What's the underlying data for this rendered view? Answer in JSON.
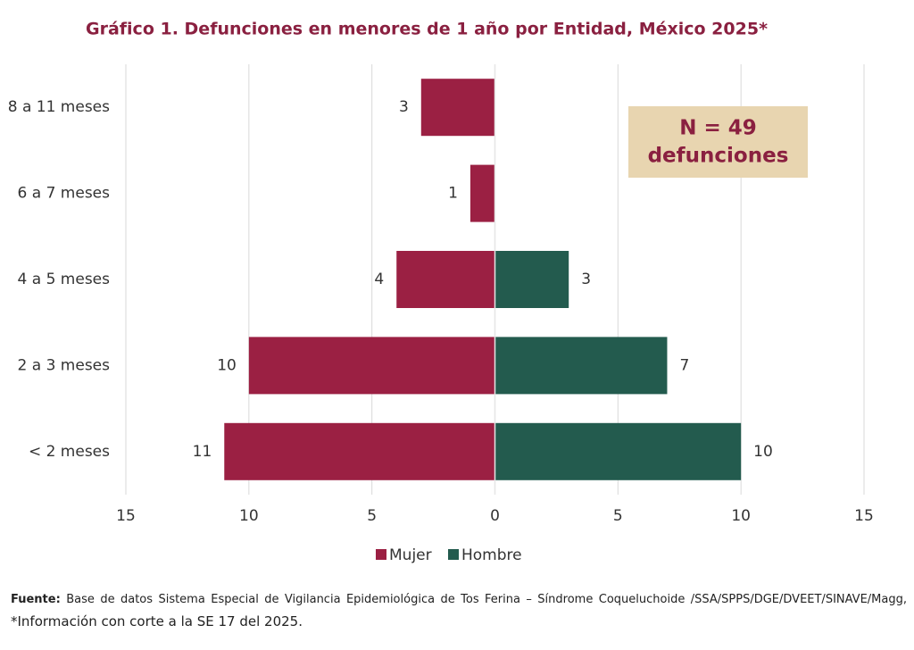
{
  "chart_data": {
    "type": "pyramid",
    "title": "Gráfico 1. Defunciones en menores de 1 año por Entidad, México 2025*",
    "categories": [
      "8 a 11 meses",
      "6 a 7 meses",
      "4 a 5 meses",
      "2 a 3 meses",
      "< 2 meses"
    ],
    "series": [
      {
        "name": "Mujer",
        "color": "#9b2043",
        "values": [
          3,
          1,
          4,
          10,
          11
        ]
      },
      {
        "name": "Hombre",
        "color": "#235b4e",
        "values": [
          null,
          null,
          3,
          7,
          10
        ]
      }
    ],
    "xlim": [
      -15,
      15
    ],
    "xticks": [
      {
        "value": -15,
        "label": "15"
      },
      {
        "value": -10,
        "label": "10"
      },
      {
        "value": -5,
        "label": "5"
      },
      0,
      5,
      10,
      15
    ],
    "grid": true,
    "annotation": [
      "N = 49",
      "defunciones"
    ],
    "annotation_color": "#e8d5b0",
    "source_label": "Fuente:",
    "source": [
      "Base de datos Sistema Especial de Vigilancia Epidemiológica de Tos Ferina – Síndrome Coqueluchoide /SSA/SPPS/DGE/DVEET/SINAVE/Magg,",
      "*Información con corte a la SE 17 del 2025."
    ]
  }
}
